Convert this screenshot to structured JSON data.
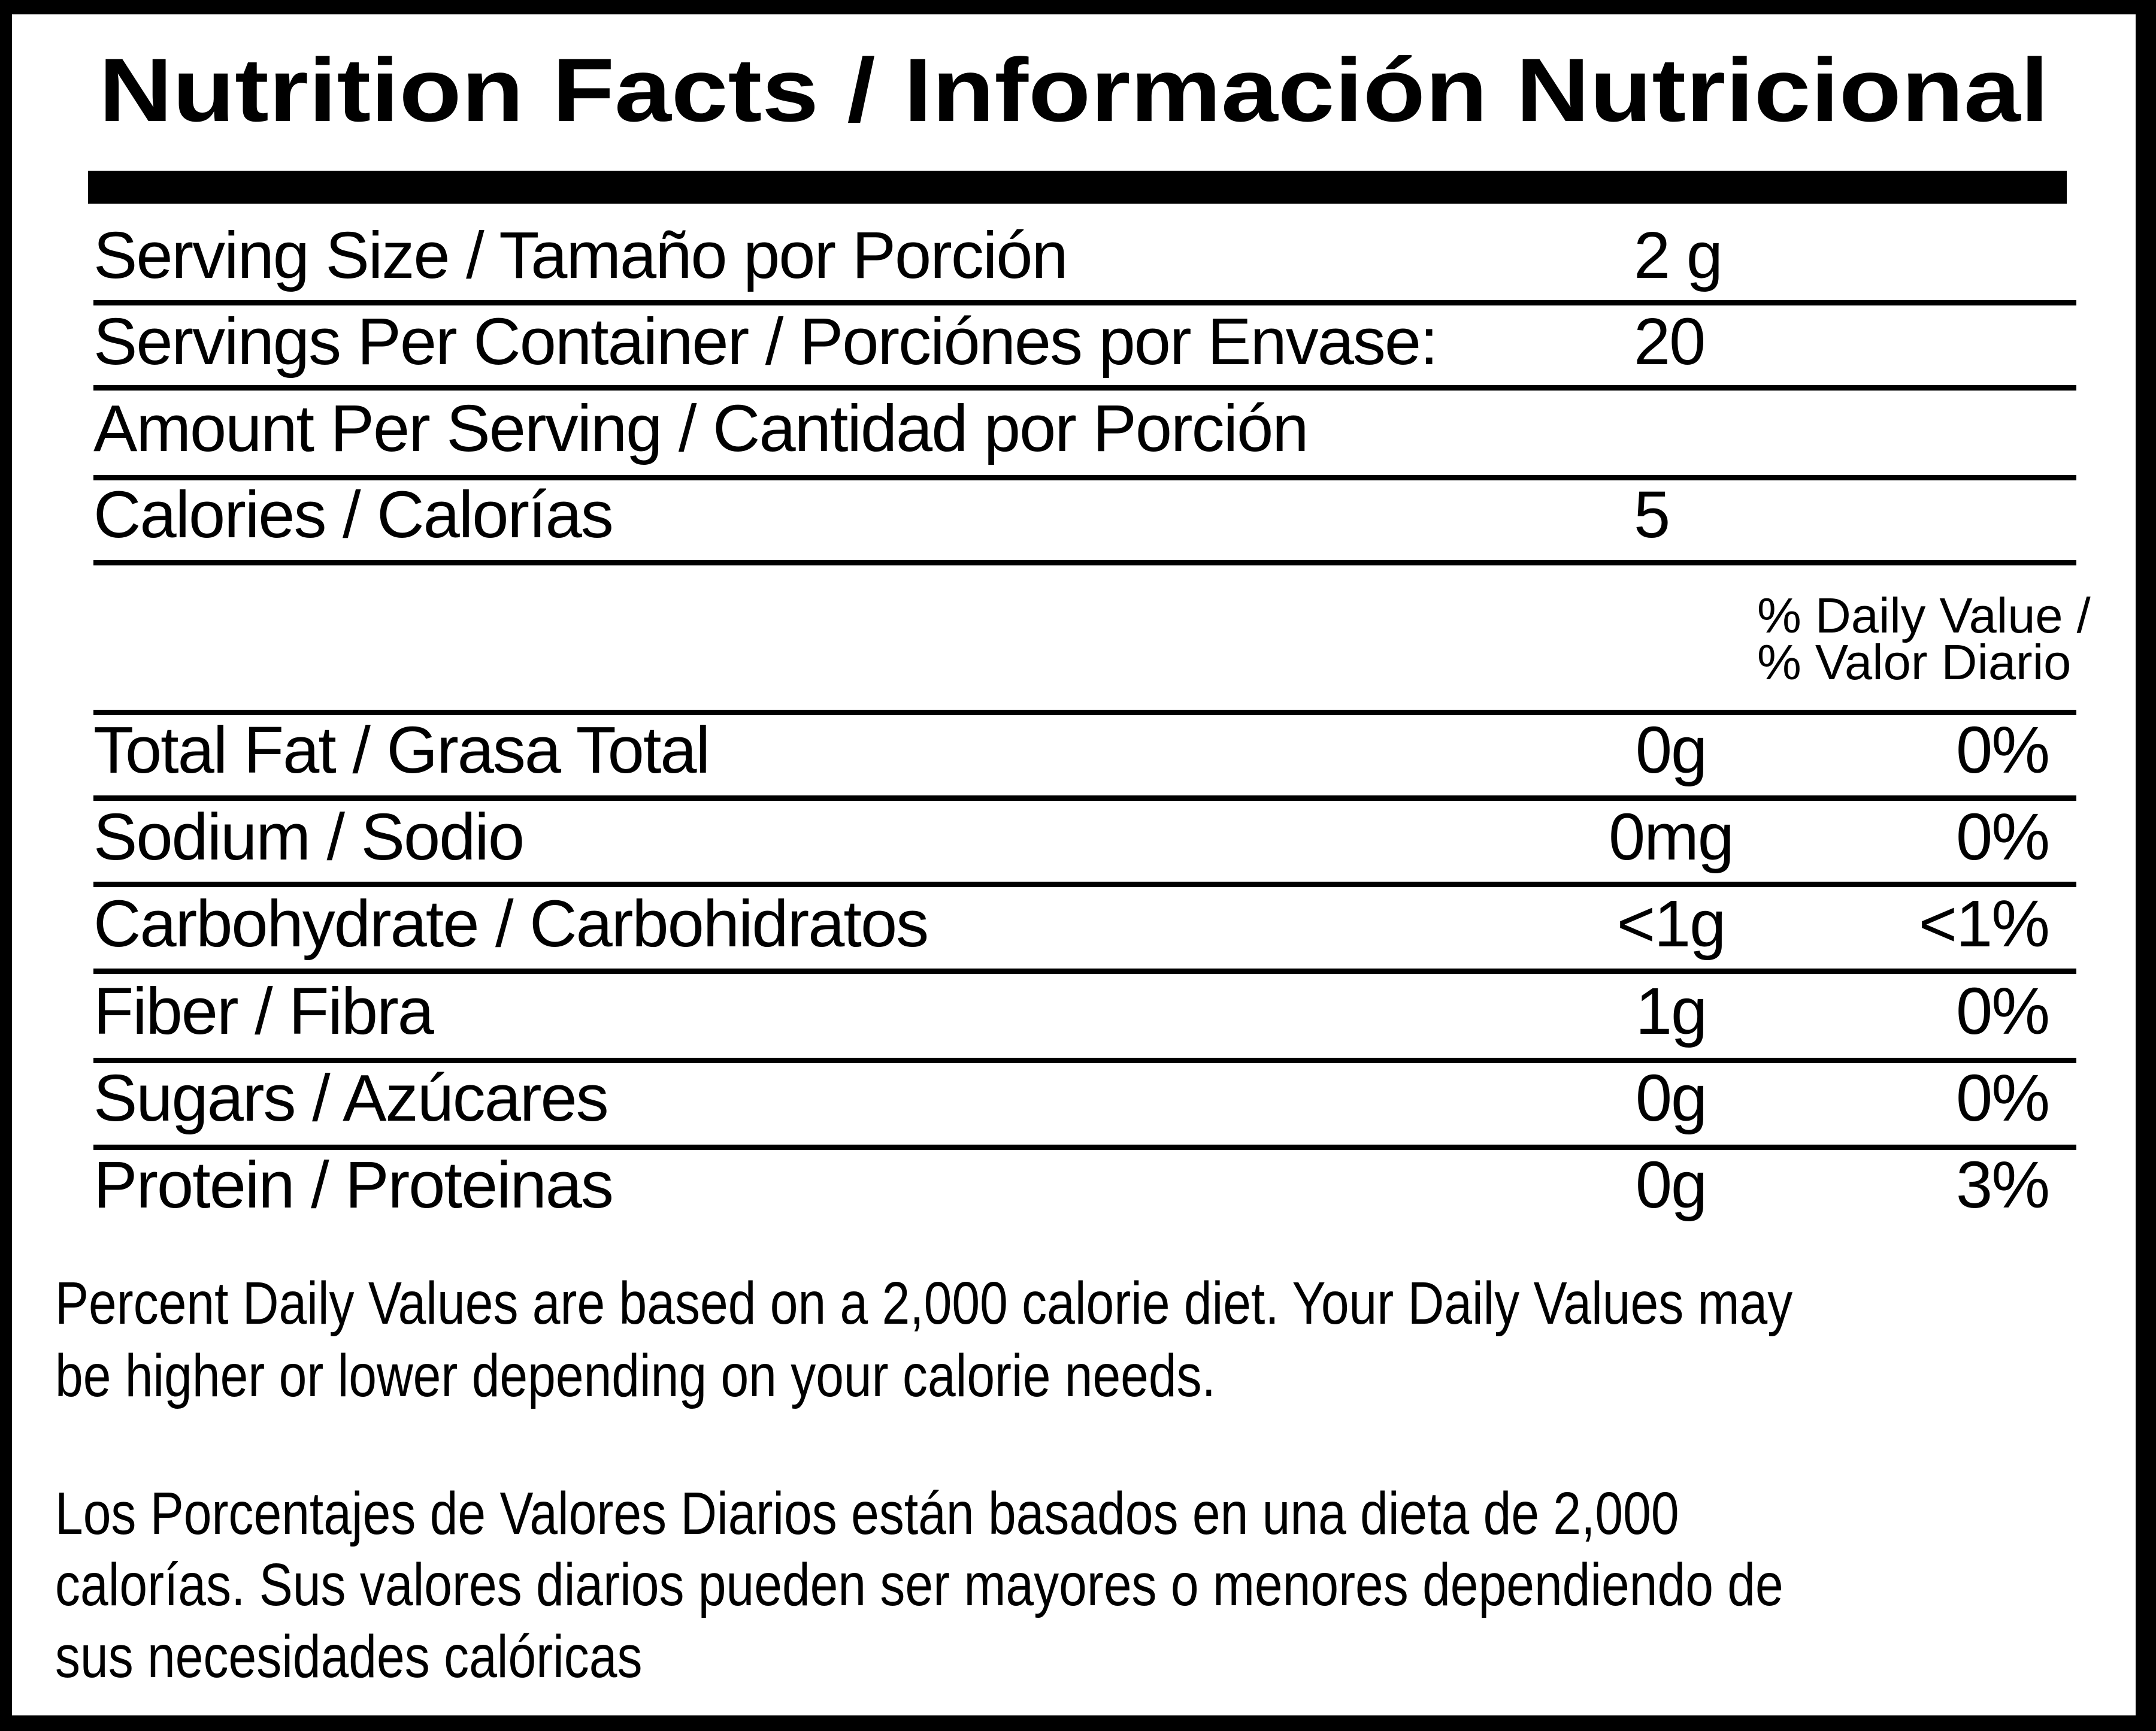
{
  "title": "Nutrition Facts / Información Nutricional",
  "serving": [
    {
      "label": "Serving Size / Tamaño por Porción",
      "value": "2 g"
    },
    {
      "label": "Servings Per Container / Porciónes por Envase:",
      "value": "20"
    },
    {
      "label": "Amount Per Serving / Cantidad por Porción",
      "value": ""
    },
    {
      "label": "Calories / Calorías",
      "value": "5"
    }
  ],
  "dv_header": {
    "line1": "% Daily Value /",
    "line2": "% Valor Diario"
  },
  "nutrients": [
    {
      "label": "Total Fat / Grasa Total",
      "amount": "0g",
      "dv": "0%"
    },
    {
      "label": "Sodium / Sodio",
      "amount": "0mg",
      "dv": "0%"
    },
    {
      "label": "Carbohydrate / Carbohidratos",
      "amount": "<1g",
      "dv": "<1%"
    },
    {
      "label": "Fiber / Fibra",
      "amount": "1g",
      "dv": "0%"
    },
    {
      "label": "Sugars / Azúcares",
      "amount": "0g",
      "dv": "0%"
    },
    {
      "label": "Protein / Proteinas",
      "amount": "0g",
      "dv": "3%"
    }
  ],
  "footer": {
    "en_lines": [
      "Percent Daily Values are based on a 2,000 calorie diet. Your Daily Values may",
      "be higher or lower depending on your calorie needs."
    ],
    "es_lines": [
      "Los Porcentajes de Valores Diarios están basados en una dieta de 2,000",
      "calorías. Sus valores diarios pueden ser mayores o menores dependiendo de",
      "sus necesidades calóricas"
    ]
  }
}
